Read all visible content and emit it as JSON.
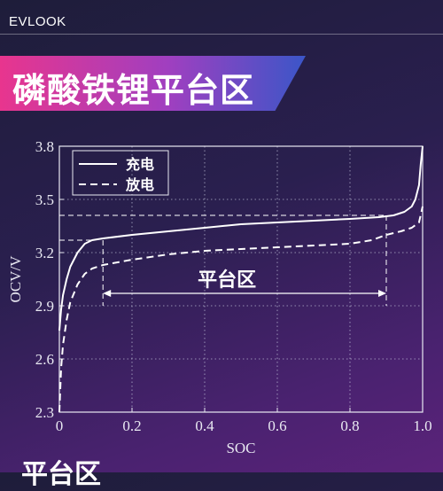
{
  "header": {
    "brand": "EVLOOK"
  },
  "banner": {
    "title": "磷酸铁锂平台区"
  },
  "chart_data": {
    "type": "line",
    "xlabel": "SOC",
    "ylabel": "OCV/V",
    "xlim": [
      0,
      1.0
    ],
    "ylim": [
      2.3,
      3.8
    ],
    "xticks": [
      "0",
      "0.2",
      "0.4",
      "0.6",
      "0.8",
      "1.0"
    ],
    "yticks": [
      "2.3",
      "2.6",
      "2.9",
      "3.2",
      "3.5",
      "3.8"
    ],
    "grid": true,
    "legend": "top-left",
    "annotation": "平台区",
    "platform_range": [
      0.12,
      0.9
    ],
    "platform_levels": [
      3.27,
      3.41
    ],
    "series": [
      {
        "name": "充电",
        "style": "solid",
        "x": [
          0.0,
          0.005,
          0.01,
          0.02,
          0.03,
          0.05,
          0.07,
          0.09,
          0.12,
          0.2,
          0.3,
          0.4,
          0.5,
          0.6,
          0.7,
          0.8,
          0.88,
          0.92,
          0.95,
          0.97,
          0.98,
          0.99,
          0.995,
          1.0
        ],
        "y": [
          2.76,
          2.88,
          2.96,
          3.05,
          3.12,
          3.2,
          3.25,
          3.27,
          3.28,
          3.3,
          3.32,
          3.34,
          3.36,
          3.37,
          3.38,
          3.39,
          3.4,
          3.41,
          3.43,
          3.46,
          3.5,
          3.58,
          3.7,
          3.8
        ]
      },
      {
        "name": "放电",
        "style": "dashed",
        "x": [
          0.0,
          0.005,
          0.01,
          0.02,
          0.03,
          0.05,
          0.07,
          0.09,
          0.12,
          0.2,
          0.3,
          0.4,
          0.5,
          0.6,
          0.7,
          0.8,
          0.86,
          0.9,
          0.94,
          0.97,
          0.99,
          1.0
        ],
        "y": [
          2.3,
          2.55,
          2.68,
          2.82,
          2.92,
          3.02,
          3.08,
          3.11,
          3.13,
          3.16,
          3.19,
          3.21,
          3.22,
          3.23,
          3.24,
          3.25,
          3.27,
          3.3,
          3.32,
          3.34,
          3.37,
          3.46
        ]
      }
    ]
  },
  "footer": {
    "title": "平台区"
  }
}
